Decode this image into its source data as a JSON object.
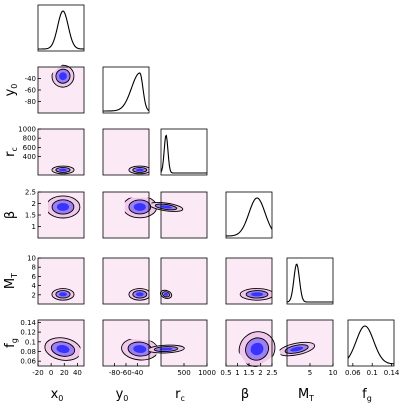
{
  "chart_data": {
    "type": "corner",
    "title": "",
    "variables": [
      {
        "key": "x0",
        "label": "x",
        "sub": "0",
        "range": [
          -20,
          50
        ],
        "ticks": [
          -20,
          0,
          20,
          40
        ],
        "peak": 18,
        "width": 8
      },
      {
        "key": "y0",
        "label": "y",
        "sub": "0",
        "range": [
          -100,
          -20
        ],
        "ticks": [
          -80,
          -60,
          -40
        ],
        "peak": -36,
        "width": 9
      },
      {
        "key": "rc",
        "label": "r",
        "sub": "c",
        "range": [
          0,
          1000
        ],
        "ticks": [
          500,
          1000
        ],
        "yticks": [
          400,
          600,
          800,
          1000
        ],
        "peak": 110,
        "width": 40
      },
      {
        "key": "beta",
        "label": "β",
        "sub": "",
        "range": [
          0.5,
          2.5
        ],
        "ticks": [
          0.5,
          1,
          1.5,
          2,
          2.5
        ],
        "peak": 1.85,
        "width": 0.35
      },
      {
        "key": "MT",
        "label": "M",
        "sub": "T",
        "range": [
          0,
          10
        ],
        "ticks": [
          5,
          10
        ],
        "yticks": [
          2,
          4,
          6,
          8,
          10
        ],
        "peak": 2.1,
        "width": 0.6
      },
      {
        "key": "fg",
        "label": "f",
        "sub": "g",
        "range": [
          0.05,
          0.145
        ],
        "ticks": [
          0.06,
          0.1,
          0.14
        ],
        "yticks": [
          0.06,
          0.08,
          0.1,
          0.12,
          0.14
        ],
        "peak": 0.085,
        "width": 0.018
      }
    ],
    "left_tick_labels": {
      "y0": [
        "-80",
        "-60",
        "-40"
      ],
      "rc": [
        "400",
        "600",
        "800",
        "1000"
      ],
      "beta": [
        "1",
        "1.5",
        "2",
        "2.5"
      ],
      "MT": [
        "2",
        "4",
        "6",
        "8",
        "10"
      ],
      "fg": [
        "0.06",
        "0.08",
        "0.1",
        "0.12",
        "0.14"
      ]
    },
    "bottom_tick_labels": {
      "x0": [
        "-20",
        "0",
        "20",
        "40"
      ],
      "y0": [
        "-80",
        "-60",
        "-40"
      ],
      "rc": [
        "500",
        "1000"
      ],
      "beta": [
        "0.5",
        "1",
        "1.5",
        "2",
        "2.5"
      ],
      "MT": [
        "5",
        "10"
      ],
      "fg": [
        "0.06",
        "0.1",
        "0.14"
      ]
    },
    "correlations": {
      "y0,x0": 0.1,
      "rc,x0": 0.0,
      "rc,y0": 0.0,
      "beta,x0": 0.0,
      "beta,y0": 0.0,
      "beta,rc": 0.6,
      "MT,x0": 0.0,
      "MT,y0": 0.0,
      "MT,rc": 0.3,
      "MT,beta": 0.0,
      "fg,x0": 0.2,
      "fg,y0": 0.1,
      "fg,rc": -0.2,
      "fg,beta": -0.2,
      "fg,MT": -0.6
    },
    "colors": {
      "panel_bg": "#fbeaf6",
      "contour_outer": "#f0c8ea",
      "contour_mid": "#9a80f0",
      "contour_core": "#2727ff",
      "line": "#000000"
    },
    "grid": false,
    "legend": "none"
  }
}
